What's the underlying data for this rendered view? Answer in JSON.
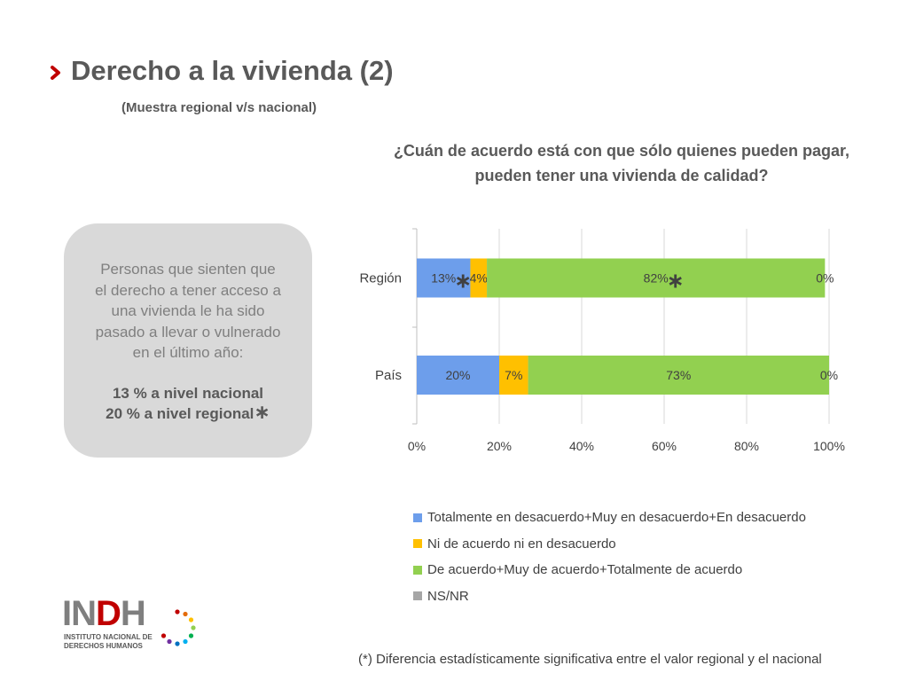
{
  "header": {
    "title": "Derecho a la vivienda (2)",
    "subtitle": "(Muestra regional v/s nacional)"
  },
  "question": {
    "line1": "¿Cuán de acuerdo está  con que sólo quienes pueden pagar,",
    "line2": "pueden tener una vivienda de calidad?"
  },
  "callout": {
    "line1": "Personas que sienten que",
    "line2": "el derecho a tener acceso a",
    "line3": "una vivienda le ha sido",
    "line4": "pasado a llevar o vulnerado",
    "line5": "en el último año:",
    "national": "13 % a nivel nacional",
    "regional": "20 % a nivel regional",
    "asterisk": "∗"
  },
  "chart_data": {
    "type": "bar",
    "orientation": "horizontal",
    "stacked": true,
    "categories": [
      "Región",
      "País"
    ],
    "series": [
      {
        "name": "Totalmente en desacuerdo+Muy en desacuerdo+En desacuerdo",
        "values": [
          13,
          20
        ],
        "labels": [
          "13%",
          "20%"
        ],
        "color": "#6d9eeb"
      },
      {
        "name": "Ni de acuerdo ni en desacuerdo",
        "values": [
          4,
          7
        ],
        "labels": [
          "4%",
          "7%"
        ],
        "color": "#ffc000"
      },
      {
        "name": "De acuerdo+Muy de acuerdo+Totalmente de acuerdo",
        "values": [
          82,
          73
        ],
        "labels": [
          "82%",
          "73%"
        ],
        "color": "#92d050"
      },
      {
        "name": "NS/NR",
        "values": [
          0,
          0
        ],
        "labels": [
          "0%",
          "0%"
        ],
        "color": "#a6a6a6"
      }
    ],
    "significance_marks": [
      {
        "category": "Región",
        "series": 0,
        "mark": "∗"
      },
      {
        "category": "Región",
        "series": 1,
        "mark": "∗"
      },
      {
        "category": "Región",
        "series": 2,
        "mark": "∗"
      }
    ],
    "x_ticks": [
      "0%",
      "20%",
      "40%",
      "60%",
      "80%",
      "100%"
    ],
    "xlim": [
      0,
      100
    ],
    "grid": true,
    "legend_position": "bottom"
  },
  "footnote": "(*) Diferencia estadísticamente significativa entre el valor regional y el nacional",
  "logo": {
    "letters_grey1": "IN",
    "letters_red": "D",
    "letters_grey2": "H",
    "sub1": "INSTITUTO NACIONAL DE",
    "sub2": "DERECHOS HUMANOS"
  },
  "colors": {
    "accent": "#c00000",
    "callout_bg": "#d9d9d9",
    "text": "#595959"
  }
}
